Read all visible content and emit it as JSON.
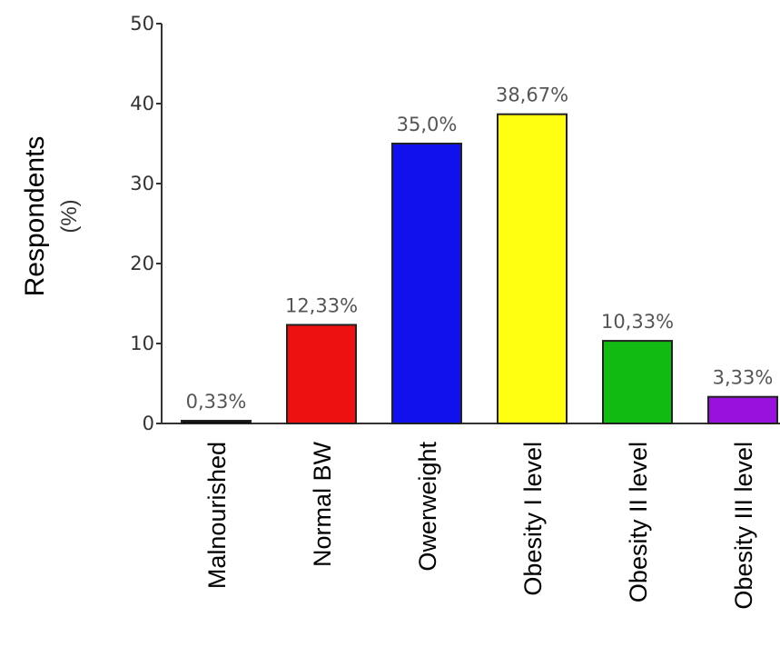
{
  "chart_data": {
    "type": "bar",
    "title": "",
    "xlabel": "",
    "ylabel": "Respondents",
    "ylabel_unit": "(%)",
    "ylim": [
      0,
      50
    ],
    "yticks": [
      "0",
      "10",
      "20",
      "30",
      "40",
      "50"
    ],
    "grid": false,
    "legend": "none",
    "categories": [
      "Malnourished",
      "Normal BW",
      "Owerweight",
      "Obesity I level",
      "Obesity II level",
      "Obesity III level"
    ],
    "values": [
      0.33,
      12.33,
      35.0,
      38.67,
      10.33,
      3.33
    ],
    "data_labels": [
      "0,33%",
      "12,33%",
      "35,0%",
      "38,67%",
      "10,33%",
      "3,33%"
    ],
    "colors": [
      "#000000",
      "#ee1111",
      "#1111ee",
      "#ffff11",
      "#11bb11",
      "#9911dd"
    ]
  }
}
